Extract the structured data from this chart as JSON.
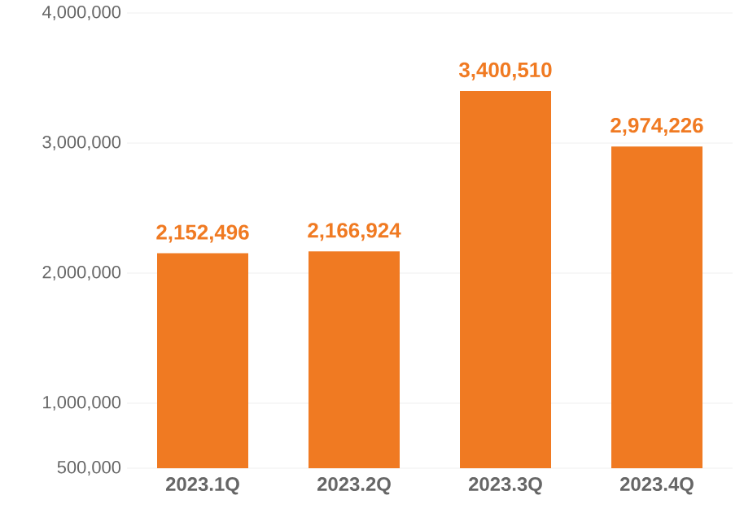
{
  "chart_data": {
    "type": "bar",
    "categories": [
      "2023.1Q",
      "2023.2Q",
      "2023.3Q",
      "2023.4Q"
    ],
    "values": [
      2152496,
      2166924,
      3400510,
      2974226
    ],
    "value_labels": [
      "2,152,496",
      "2,166,924",
      "3,400,510",
      "2,974,226"
    ],
    "color": "#f07a22",
    "ylim": [
      500000,
      4000000
    ],
    "yticks": [
      {
        "value": 500000,
        "label": "500,000"
      },
      {
        "value": 1000000,
        "label": "1,000,000"
      },
      {
        "value": 2000000,
        "label": "2,000,000"
      },
      {
        "value": 3000000,
        "label": "3,000,000"
      },
      {
        "value": 4000000,
        "label": "4,000,000"
      }
    ],
    "grid": "y"
  }
}
